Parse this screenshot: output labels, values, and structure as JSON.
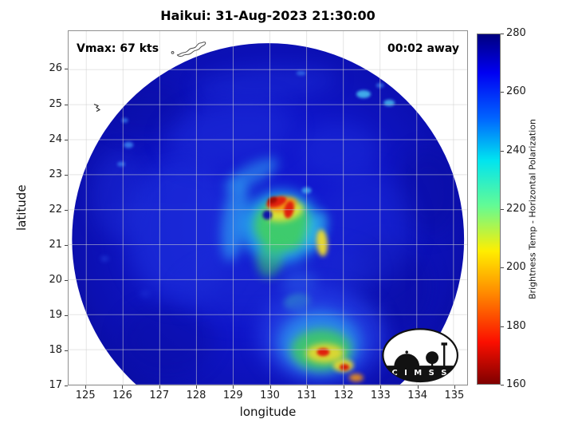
{
  "logo": {
    "text": "C I M S S"
  },
  "chart_data": {
    "type": "heatmap",
    "title": "Haikui: 31-Aug-2023 21:30:00",
    "xlabel": "longitude",
    "ylabel": "latitude",
    "xlim": [
      124.52,
      135.37
    ],
    "ylim": [
      17.0,
      27.1
    ],
    "x_ticks": [
      125,
      126,
      127,
      128,
      129,
      130,
      131,
      132,
      133,
      134,
      135
    ],
    "y_ticks": [
      17,
      18,
      19,
      20,
      21,
      22,
      23,
      24,
      25,
      26
    ],
    "grid": true,
    "annotations": [
      "Vmax: 67 kts",
      "00:02 away"
    ],
    "storm": {
      "name": "Haikui",
      "datetime": "31-Aug-2023 21:30:00",
      "vmax_kts": 67,
      "eye_lon": 130.0,
      "eye_lat": 21.9
    },
    "colorbar": {
      "label": "Brightness Temp - Horizontal Polarization",
      "range": [
        160,
        280
      ],
      "ticks": [
        160,
        180,
        200,
        220,
        240,
        260,
        280
      ],
      "colormap": "jet (280 K = dark blue at top, 160 K = dark red at bottom)",
      "stops": [
        [
          "#00007f",
          0
        ],
        [
          "#0000f2",
          11
        ],
        [
          "#0064ff",
          24
        ],
        [
          "#00e4f0",
          36
        ],
        [
          "#63fb95",
          49
        ],
        [
          "#ffee00",
          62
        ],
        [
          "#ff8a00",
          74
        ],
        [
          "#fb0f00",
          88
        ],
        [
          "#7f0000",
          100
        ]
      ]
    },
    "swath": {
      "center_lon": 129.95,
      "center_lat": 21.15,
      "radius_px": 247
    },
    "features_format": "[lon, lat, rx_px, ry_px, rotate_deg, color, opacity, blur_px]",
    "features": [
      [
        133.2,
        19.8,
        55,
        60,
        0,
        "#0a0d9e",
        0.45,
        12
      ],
      [
        126.6,
        24.9,
        55,
        35,
        0,
        "#0a0d9e",
        0.35,
        12
      ],
      [
        134.3,
        22.5,
        40,
        55,
        0,
        "#0a0d9e",
        0.4,
        12
      ],
      [
        127.2,
        18.3,
        60,
        45,
        0,
        "#0a0d9e",
        0.35,
        12
      ],
      [
        127.6,
        21.4,
        70,
        90,
        0,
        "#2136e0",
        0.55,
        14
      ],
      [
        128.9,
        24.2,
        80,
        40,
        -10,
        "#1f30da",
        0.5,
        14
      ],
      [
        132.6,
        21.5,
        60,
        70,
        0,
        "#1d2ed8",
        0.4,
        14
      ],
      [
        131.9,
        23.7,
        50,
        35,
        0,
        "#2033dd",
        0.4,
        12
      ],
      [
        129.9,
        25.6,
        90,
        20,
        -4,
        "#1f30da",
        0.45,
        12
      ],
      [
        125.9,
        22.4,
        35,
        55,
        0,
        "#1f30da",
        0.4,
        12
      ],
      [
        130.2,
        19.9,
        120,
        40,
        -8,
        "#1b2bd4",
        0.5,
        14
      ],
      [
        129.05,
        21.7,
        16,
        52,
        8,
        "#2f9ef2",
        0.7,
        7
      ],
      [
        129.5,
        23.0,
        38,
        13,
        -28,
        "#2f9ef2",
        0.6,
        7
      ],
      [
        130.3,
        21.5,
        50,
        46,
        0,
        "#28b9f0",
        0.8,
        8
      ],
      [
        130.35,
        21.55,
        36,
        33,
        0,
        "#45d84f",
        0.8,
        6
      ],
      [
        130.0,
        20.6,
        16,
        24,
        10,
        "#3ccf63",
        0.55,
        6
      ],
      [
        131.25,
        21.4,
        13,
        26,
        22,
        "#30c0ee",
        0.55,
        6
      ],
      [
        130.4,
        21.95,
        24,
        12,
        -12,
        "#e9e634",
        0.9,
        4
      ],
      [
        131.42,
        21.05,
        7,
        17,
        -5,
        "#f0dd2c",
        0.95,
        3
      ],
      [
        130.35,
        22.15,
        18,
        9,
        -12,
        "#f59413",
        0.95,
        3
      ],
      [
        130.18,
        22.22,
        13,
        6,
        -18,
        "#e01f0e",
        1.0,
        2
      ],
      [
        130.52,
        22.0,
        6,
        11,
        12,
        "#e01f0e",
        1.0,
        2
      ],
      [
        130.07,
        22.27,
        6,
        4,
        -20,
        "#a30b04",
        1.0,
        1.5
      ],
      [
        129.93,
        21.85,
        6,
        6,
        0,
        "#0a0cae",
        0.95,
        2
      ],
      [
        131.0,
        22.55,
        6,
        4,
        0,
        "#49c6f2",
        0.7,
        2
      ],
      [
        130.8,
        19.9,
        22,
        18,
        0,
        "#2a63e8",
        0.5,
        8
      ],
      [
        130.75,
        19.35,
        17,
        10,
        -10,
        "#38cfae",
        0.75,
        4
      ],
      [
        131.4,
        18.4,
        80,
        60,
        0,
        "#2540e6",
        0.75,
        12
      ],
      [
        131.35,
        18.2,
        52,
        40,
        0,
        "#2f9ff0",
        0.75,
        9
      ],
      [
        131.4,
        18.0,
        38,
        26,
        0,
        "#43d254",
        0.8,
        6
      ],
      [
        131.5,
        17.9,
        24,
        12,
        0,
        "#ead92d",
        0.9,
        4
      ],
      [
        132.0,
        17.55,
        13,
        8,
        0,
        "#ead92d",
        0.9,
        3
      ],
      [
        131.45,
        17.93,
        8,
        5,
        0,
        "#e01f0e",
        1.0,
        2
      ],
      [
        132.03,
        17.5,
        6,
        4,
        0,
        "#d41a08",
        1.0,
        2
      ],
      [
        132.35,
        17.2,
        9,
        5,
        0,
        "#f59413",
        0.9,
        3
      ],
      [
        126.15,
        23.85,
        6,
        4,
        0,
        "#3f8cf5",
        0.8,
        2
      ],
      [
        125.95,
        23.3,
        5,
        3,
        0,
        "#3f8cf5",
        0.7,
        2
      ],
      [
        126.05,
        24.55,
        4,
        3,
        0,
        "#3f8cf5",
        0.7,
        2
      ],
      [
        132.55,
        25.3,
        9,
        5,
        0,
        "#49c6f2",
        0.85,
        2
      ],
      [
        133.25,
        25.05,
        7,
        4,
        0,
        "#49c6f2",
        0.8,
        2
      ],
      [
        133.0,
        25.55,
        5,
        3,
        0,
        "#3f8cf5",
        0.7,
        2
      ],
      [
        130.85,
        25.9,
        6,
        3,
        0,
        "#3f8cf5",
        0.6,
        2
      ],
      [
        125.5,
        20.6,
        5,
        3,
        0,
        "#2a50e8",
        0.6,
        3
      ],
      [
        126.6,
        19.6,
        6,
        4,
        0,
        "#2440e0",
        0.5,
        4
      ]
    ]
  }
}
